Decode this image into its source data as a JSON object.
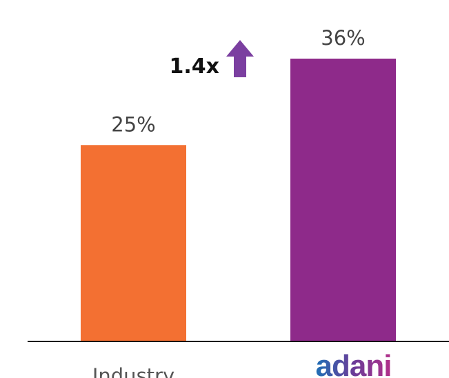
{
  "chart_data": {
    "type": "bar",
    "categories": [
      "Industry",
      "adani"
    ],
    "values": [
      25,
      36
    ],
    "value_labels": [
      "25%",
      "36%"
    ],
    "colors": [
      "#f37032",
      "#8e2a8a"
    ],
    "annotation": "1.4x"
  }
}
